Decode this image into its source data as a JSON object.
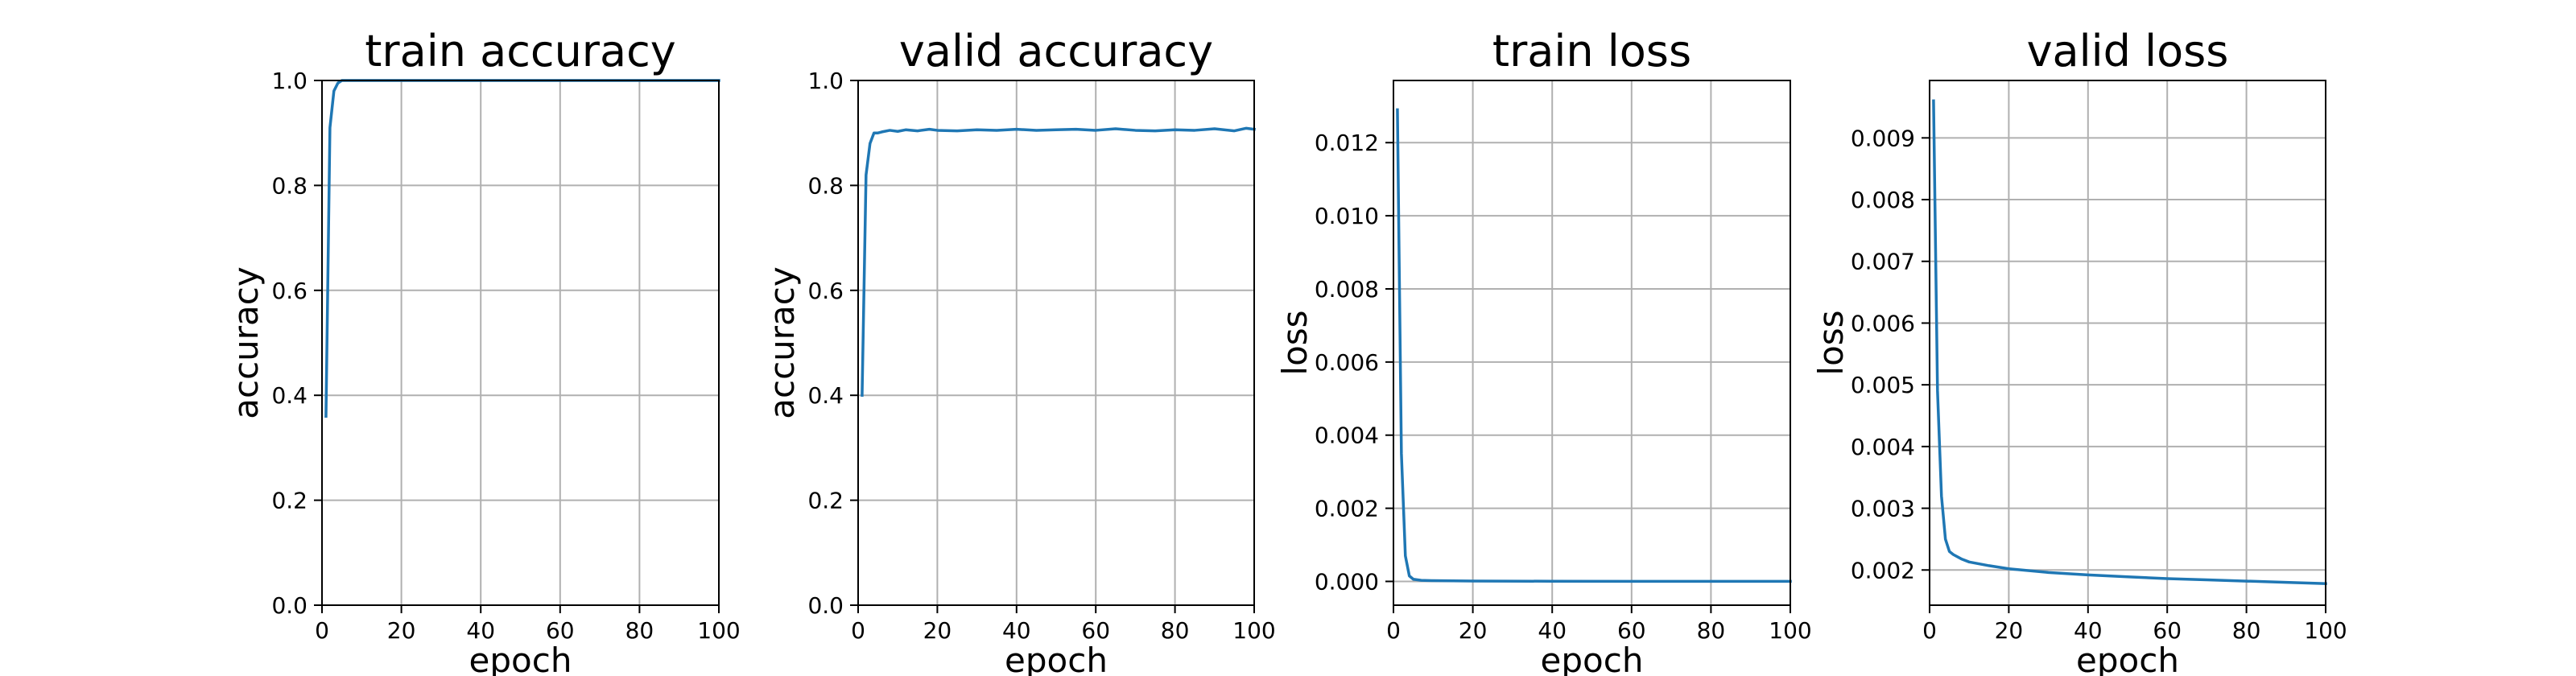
{
  "chart_data": [
    {
      "type": "line",
      "title": "train accuracy",
      "xlabel": "epoch",
      "ylabel": "accuracy",
      "xlim": [
        0,
        100
      ],
      "ylim": [
        0,
        1.0
      ],
      "xticks": [
        0,
        20,
        40,
        60,
        80,
        100
      ],
      "yticks": [
        0.0,
        0.2,
        0.4,
        0.6,
        0.8,
        1.0
      ],
      "ytick_labels": [
        "0.0",
        "0.2",
        "0.4",
        "0.6",
        "0.8",
        "1.0"
      ],
      "grid": true,
      "color": "#1f77b4",
      "series": [
        {
          "x": [
            1,
            2,
            3,
            4,
            5,
            10,
            20,
            30,
            40,
            50,
            60,
            70,
            80,
            90,
            100
          ],
          "y": [
            0.36,
            0.91,
            0.98,
            0.995,
            1.0,
            1.0,
            1.0,
            1.0,
            1.0,
            1.0,
            1.0,
            1.0,
            1.0,
            1.0,
            1.0
          ]
        }
      ]
    },
    {
      "type": "line",
      "title": "valid accuracy",
      "xlabel": "epoch",
      "ylabel": "accuracy",
      "xlim": [
        0,
        100
      ],
      "ylim": [
        0,
        1.0
      ],
      "xticks": [
        0,
        20,
        40,
        60,
        80,
        100
      ],
      "yticks": [
        0.0,
        0.2,
        0.4,
        0.6,
        0.8,
        1.0
      ],
      "ytick_labels": [
        "0.0",
        "0.2",
        "0.4",
        "0.6",
        "0.8",
        "1.0"
      ],
      "grid": true,
      "color": "#1f77b4",
      "series": [
        {
          "x": [
            1,
            2,
            3,
            4,
            5,
            6,
            8,
            10,
            12,
            15,
            18,
            20,
            25,
            30,
            35,
            40,
            45,
            50,
            55,
            60,
            65,
            70,
            75,
            80,
            85,
            90,
            95,
            98,
            100
          ],
          "y": [
            0.4,
            0.82,
            0.88,
            0.9,
            0.9,
            0.902,
            0.905,
            0.903,
            0.906,
            0.904,
            0.907,
            0.905,
            0.904,
            0.906,
            0.905,
            0.907,
            0.905,
            0.906,
            0.907,
            0.905,
            0.908,
            0.905,
            0.904,
            0.906,
            0.905,
            0.908,
            0.904,
            0.909,
            0.907
          ]
        }
      ]
    },
    {
      "type": "line",
      "title": "train loss",
      "xlabel": "epoch",
      "ylabel": "loss",
      "xlim": [
        0,
        100
      ],
      "ylim": [
        -0.00065,
        0.0137
      ],
      "xticks": [
        0,
        20,
        40,
        60,
        80,
        100
      ],
      "yticks": [
        0.0,
        0.002,
        0.004,
        0.006,
        0.008,
        0.01,
        0.012
      ],
      "ytick_labels": [
        "0.000",
        "0.002",
        "0.004",
        "0.006",
        "0.008",
        "0.010",
        "0.012"
      ],
      "grid": true,
      "color": "#1f77b4",
      "series": [
        {
          "x": [
            1,
            2,
            3,
            4,
            5,
            7,
            10,
            20,
            40,
            60,
            80,
            100
          ],
          "y": [
            0.0129,
            0.0035,
            0.0007,
            0.00015,
            6e-05,
            3e-05,
            2e-05,
            1e-05,
            5e-06,
            3e-06,
            2e-06,
            1e-06
          ]
        }
      ]
    },
    {
      "type": "line",
      "title": "valid loss",
      "xlabel": "epoch",
      "ylabel": "loss",
      "xlim": [
        0,
        100
      ],
      "ylim": [
        0.00143,
        0.00993
      ],
      "xticks": [
        0,
        20,
        40,
        60,
        80,
        100
      ],
      "yticks": [
        0.002,
        0.003,
        0.004,
        0.005,
        0.006,
        0.007,
        0.008,
        0.009
      ],
      "ytick_labels": [
        "0.002",
        "0.003",
        "0.004",
        "0.005",
        "0.006",
        "0.007",
        "0.008",
        "0.009"
      ],
      "grid": true,
      "color": "#1f77b4",
      "series": [
        {
          "x": [
            1,
            2,
            3,
            4,
            5,
            6,
            8,
            10,
            15,
            20,
            30,
            40,
            50,
            60,
            70,
            80,
            90,
            100
          ],
          "y": [
            0.0096,
            0.0049,
            0.0032,
            0.0025,
            0.0023,
            0.00225,
            0.00218,
            0.00213,
            0.00207,
            0.00202,
            0.00196,
            0.00192,
            0.00189,
            0.00186,
            0.00184,
            0.00182,
            0.0018,
            0.00178
          ]
        }
      ]
    }
  ]
}
